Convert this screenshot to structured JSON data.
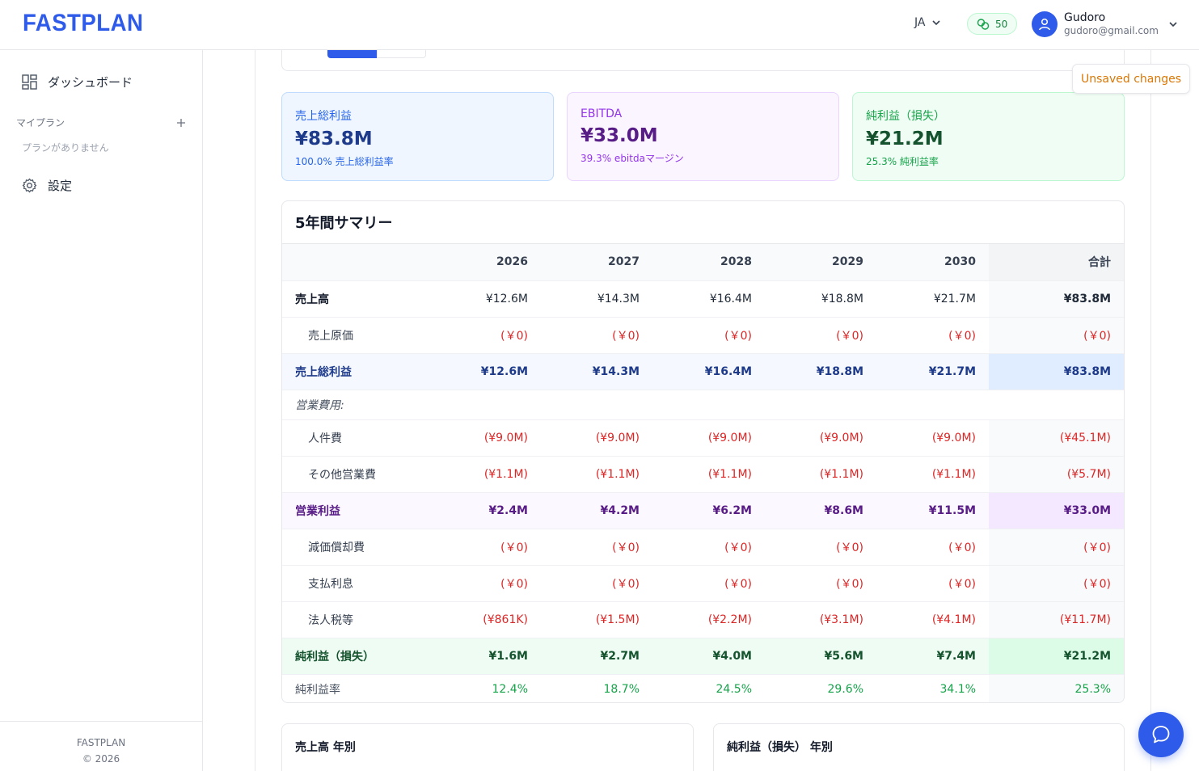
{
  "header": {
    "logo": "FASTPLAN",
    "language": "JA",
    "credits": "50",
    "user_name": "Gudoro",
    "user_email": "gudoro@gmail.com"
  },
  "sidebar": {
    "dashboard": "ダッシュボード",
    "my_plans": "マイプラン",
    "no_plans": "プランがありません",
    "settings": "設定",
    "footer_brand": "FASTPLAN",
    "footer_copyright": "© 2026"
  },
  "status": {
    "unsaved": "Unsaved changes"
  },
  "cards": [
    {
      "label": "売上総利益",
      "value": "¥83.8M",
      "sub": "100.0% 売上総利益率"
    },
    {
      "label": "EBITDA",
      "value": "¥33.0M",
      "sub": "39.3% ebitdaマージン"
    },
    {
      "label": "純利益（損失）",
      "value": "¥21.2M",
      "sub": "25.3% 純利益率"
    }
  ],
  "summary": {
    "title": "5年間サマリー",
    "columns": [
      "2026",
      "2027",
      "2028",
      "2029",
      "2030",
      "合計"
    ],
    "rows": {
      "revenue": {
        "label": "売上高",
        "values": [
          "¥12.6M",
          "¥14.3M",
          "¥16.4M",
          "¥18.8M",
          "¥21.7M",
          "¥83.8M"
        ]
      },
      "cogs": {
        "label": "売上原価",
        "values": [
          "(￥0)",
          "(￥0)",
          "(￥0)",
          "(￥0)",
          "(￥0)",
          "(￥0)"
        ]
      },
      "gross": {
        "label": "売上総利益",
        "values": [
          "¥12.6M",
          "¥14.3M",
          "¥16.4M",
          "¥18.8M",
          "¥21.7M",
          "¥83.8M"
        ]
      },
      "opex_header": {
        "label": "営業費用:"
      },
      "personnel": {
        "label": "人件費",
        "values": [
          "(¥9.0M)",
          "(¥9.0M)",
          "(¥9.0M)",
          "(¥9.0M)",
          "(¥9.0M)",
          "(¥45.1M)"
        ]
      },
      "other_opex": {
        "label": "その他営業費",
        "values": [
          "(¥1.1M)",
          "(¥1.1M)",
          "(¥1.1M)",
          "(¥1.1M)",
          "(¥1.1M)",
          "(¥5.7M)"
        ]
      },
      "operating_income": {
        "label": "営業利益",
        "values": [
          "¥2.4M",
          "¥4.2M",
          "¥6.2M",
          "¥8.6M",
          "¥11.5M",
          "¥33.0M"
        ]
      },
      "depreciation": {
        "label": "減価償却費",
        "values": [
          "(￥0)",
          "(￥0)",
          "(￥0)",
          "(￥0)",
          "(￥0)",
          "(￥0)"
        ]
      },
      "interest": {
        "label": "支払利息",
        "values": [
          "(￥0)",
          "(￥0)",
          "(￥0)",
          "(￥0)",
          "(￥0)",
          "(￥0)"
        ]
      },
      "tax": {
        "label": "法人税等",
        "values": [
          "(¥861K)",
          "(¥1.5M)",
          "(¥2.2M)",
          "(¥3.1M)",
          "(¥4.1M)",
          "(¥11.7M)"
        ]
      },
      "net_income": {
        "label": "純利益（損失）",
        "values": [
          "¥1.6M",
          "¥2.7M",
          "¥4.0M",
          "¥5.6M",
          "¥7.4M",
          "¥21.2M"
        ]
      },
      "net_margin": {
        "label": "純利益率",
        "values": [
          "12.4%",
          "18.7%",
          "24.5%",
          "29.6%",
          "34.1%",
          "25.3%"
        ]
      }
    }
  },
  "charts": {
    "revenue_title": "売上高 年別",
    "net_income_title": "純利益（損失） 年別"
  },
  "colors": {
    "brand": "#2f5bea",
    "negative": "#dc2626",
    "positive": "#16a34a",
    "warning": "#d97706"
  }
}
